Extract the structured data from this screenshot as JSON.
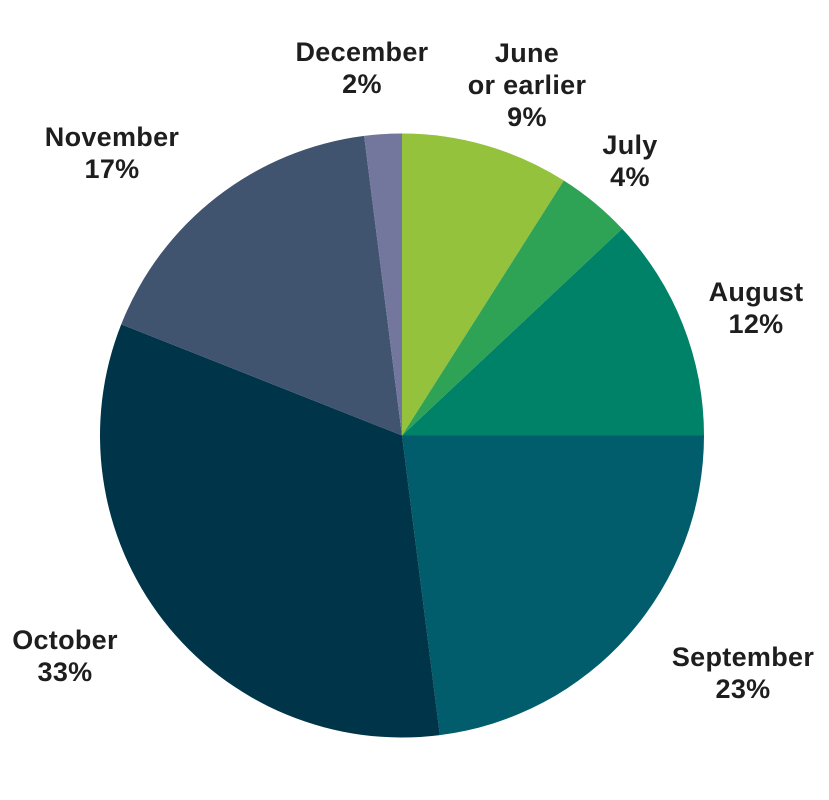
{
  "chart_data": {
    "type": "pie",
    "direction": "clockwise",
    "start_angle_deg": 0,
    "unit": "percent",
    "total": 100,
    "legend": "none",
    "label_style": "outside",
    "text_color": "#1E1E1E",
    "background_color": "#FFFFFF",
    "slices": [
      {
        "label": "June or earlier",
        "label_lines": [
          "June",
          "or earlier"
        ],
        "value": 9,
        "pct_label": "9%",
        "color": "#95C23D"
      },
      {
        "label": "July",
        "label_lines": [
          "July"
        ],
        "value": 4,
        "pct_label": "4%",
        "color": "#2FA355"
      },
      {
        "label": "August",
        "label_lines": [
          "August"
        ],
        "value": 12,
        "pct_label": "12%",
        "color": "#008268"
      },
      {
        "label": "September",
        "label_lines": [
          "September"
        ],
        "value": 23,
        "pct_label": "23%",
        "color": "#015C6C"
      },
      {
        "label": "October",
        "label_lines": [
          "October"
        ],
        "value": 33,
        "pct_label": "33%",
        "color": "#003449"
      },
      {
        "label": "November",
        "label_lines": [
          "November"
        ],
        "value": 17,
        "pct_label": "17%",
        "color": "#40536F"
      },
      {
        "label": "December",
        "label_lines": [
          "December"
        ],
        "value": 2,
        "pct_label": "2%",
        "color": "#74779D"
      }
    ]
  }
}
